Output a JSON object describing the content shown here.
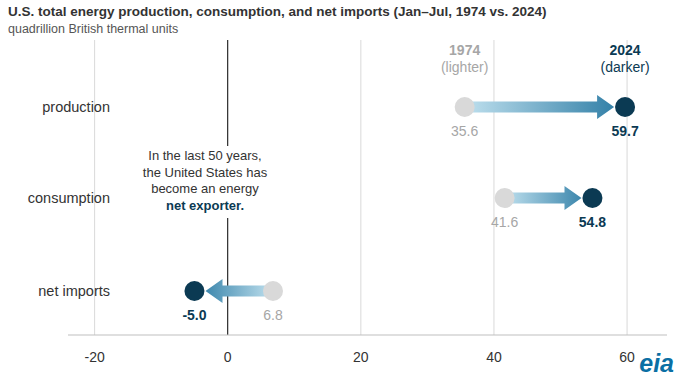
{
  "chart_data": {
    "type": "dumbbell",
    "orientation": "horizontal",
    "title": "U.S. total energy production, consumption, and net imports (Jan–Jul, 1974 vs. 2024)",
    "subtitle": "quadrillion British thermal units",
    "categories": [
      "production",
      "consumption",
      "net imports"
    ],
    "series": [
      {
        "name": "1974 (lighter)",
        "color": "#d9d9d9",
        "values": [
          35.6,
          41.6,
          6.8
        ],
        "value_labels": [
          "35.6",
          "41.6",
          "6.8"
        ]
      },
      {
        "name": "2024 (darker)",
        "color": "#0b3a53",
        "values": [
          59.7,
          54.8,
          -5.0
        ],
        "value_labels": [
          "59.7",
          "54.8",
          "-5.0"
        ]
      }
    ],
    "xlim": [
      -24,
      66
    ],
    "xticks": [
      -20,
      0,
      20,
      40,
      60
    ],
    "grid": true,
    "data_labels": true,
    "annotations": [
      {
        "lines": [
          "In the last 50 years,",
          "the United States has",
          "become an energy",
          "net exporter."
        ]
      }
    ],
    "logo": "eia"
  }
}
